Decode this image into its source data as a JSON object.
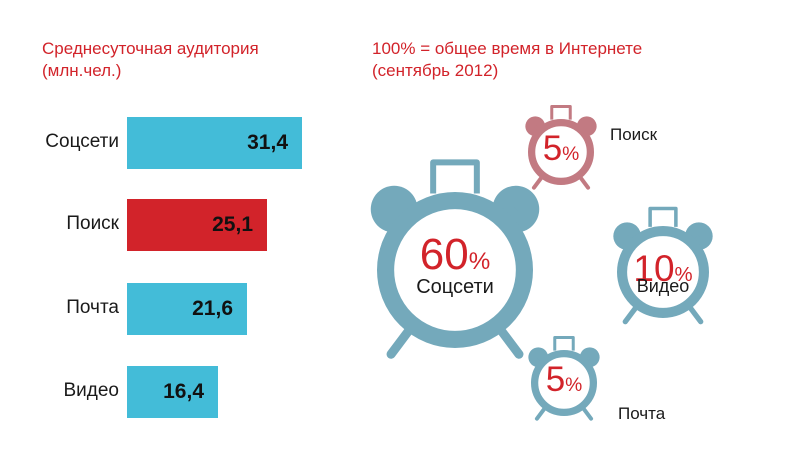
{
  "bar_chart": {
    "title_line1": "Среднесуточная аудитория",
    "title_line2": "(млн.чел.)"
  },
  "clock_chart": {
    "title_line1": "100% = общее время в Интернете",
    "title_line2": "(сентябрь 2012)"
  },
  "colors": {
    "title": "#d2232a",
    "bar_default": "#43bcd8",
    "bar_highlight": "#d2232a",
    "clock_default": "#74a9bb",
    "clock_highlight": "#c27a82",
    "percent_text": "#d2232a"
  },
  "chart_data": [
    {
      "type": "bar",
      "orientation": "horizontal",
      "title": "Среднесуточная аудитория (млн.чел.)",
      "categories": [
        "Соцсети",
        "Поиск",
        "Почта",
        "Видео"
      ],
      "values": [
        31.4,
        25.1,
        21.6,
        16.4
      ],
      "value_labels": [
        "31,4",
        "25,1",
        "21,6",
        "16,4"
      ],
      "highlight": "Поиск",
      "xlim": [
        0,
        31.4
      ]
    },
    {
      "type": "pie",
      "style": "alarm-clock bubbles",
      "title": "100% = общее время в Интернете (сентябрь 2012)",
      "categories": [
        "Соцсети",
        "Поиск",
        "Видео",
        "Почта"
      ],
      "values": [
        60,
        5,
        10,
        5
      ],
      "value_labels": [
        "60",
        "5",
        "10",
        "5"
      ],
      "unit": "%",
      "highlight": "Поиск"
    }
  ]
}
